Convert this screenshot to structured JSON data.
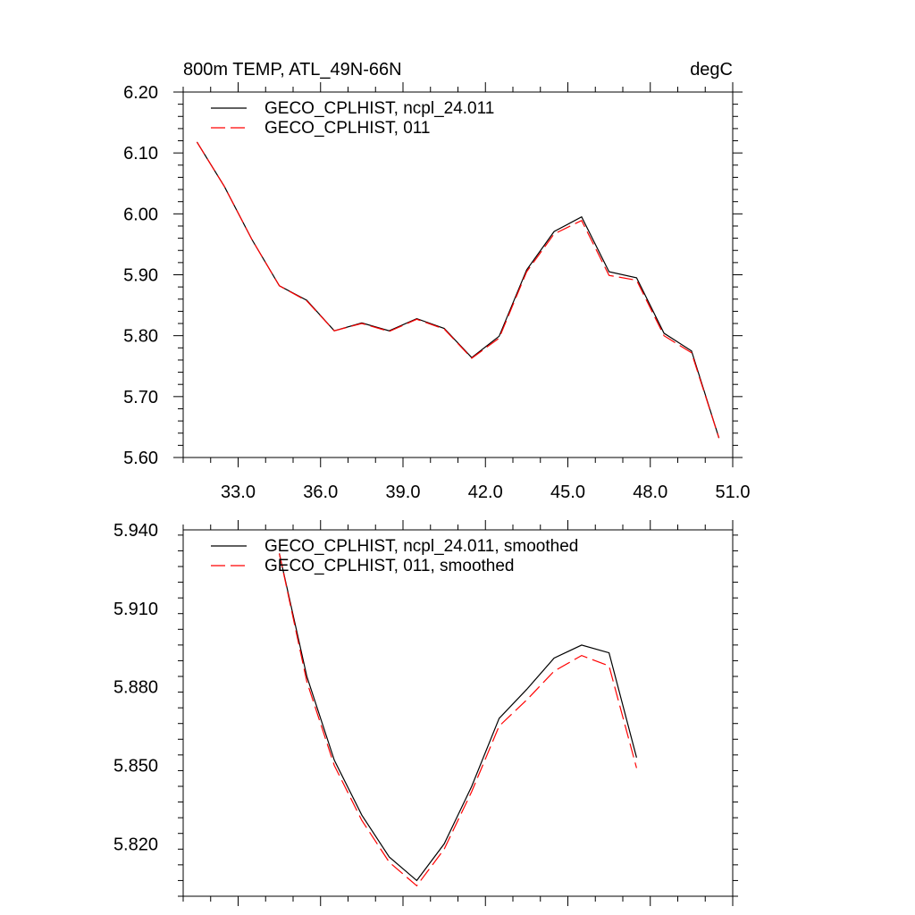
{
  "chart_data": [
    {
      "type": "line",
      "title_left": "800m TEMP, ATL_49N-66N",
      "title_right": "degC",
      "xlim": [
        31,
        51
      ],
      "ylim": [
        5.6,
        6.2
      ],
      "xticks": [
        33,
        36,
        39,
        42,
        45,
        48,
        51
      ],
      "xtick_labels": [
        "33.0",
        "36.0",
        "39.0",
        "42.0",
        "45.0",
        "48.0",
        "51.0"
      ],
      "yticks": [
        5.6,
        5.7,
        5.8,
        5.9,
        6.0,
        6.1,
        6.2
      ],
      "ytick_labels": [
        "5.60",
        "5.70",
        "5.80",
        "5.90",
        "6.00",
        "6.10",
        "6.20"
      ],
      "legend_position": "top-left",
      "x": [
        31.5,
        32.5,
        33.5,
        34.5,
        35.5,
        36.5,
        37.5,
        38.5,
        39.5,
        40.5,
        41.5,
        42.5,
        43.5,
        44.5,
        45.5,
        46.5,
        47.5,
        48.5,
        49.5,
        50.5
      ],
      "series": [
        {
          "name": "GECO_CPLHIST, ncpl_24.011",
          "color": "#000000",
          "dash": "solid",
          "values": [
            6.118,
            6.045,
            5.958,
            5.882,
            5.858,
            5.808,
            5.821,
            5.808,
            5.828,
            5.812,
            5.764,
            5.799,
            5.908,
            5.971,
            5.995,
            5.905,
            5.895,
            5.804,
            5.775,
            5.632
          ]
        },
        {
          "name": "GECO_CPLHIST, 011",
          "color": "#ff0000",
          "dash": "dashed",
          "values": [
            6.118,
            6.045,
            5.958,
            5.882,
            5.857,
            5.808,
            5.82,
            5.807,
            5.827,
            5.811,
            5.763,
            5.796,
            5.905,
            5.967,
            5.989,
            5.899,
            5.891,
            5.8,
            5.772,
            5.632
          ]
        }
      ]
    },
    {
      "type": "line",
      "xlim": [
        31,
        51
      ],
      "ylim": [
        5.8,
        5.94
      ],
      "xticks": [
        33,
        36,
        39,
        42,
        45,
        48,
        51
      ],
      "yticks": [
        5.82,
        5.85,
        5.88,
        5.91,
        5.94
      ],
      "ytick_labels": [
        "5.820",
        "5.850",
        "5.880",
        "5.910",
        "5.940"
      ],
      "legend_position": "top-left",
      "x": [
        34.5,
        35.5,
        36.5,
        37.5,
        38.5,
        39.5,
        40.5,
        41.5,
        42.5,
        43.5,
        44.5,
        45.5,
        46.5,
        47.5
      ],
      "series": [
        {
          "name": "GECO_CPLHIST, ncpl_24.011, smoothed",
          "color": "#000000",
          "dash": "solid",
          "values": [
            5.931,
            5.884,
            5.852,
            5.831,
            5.815,
            5.806,
            5.82,
            5.842,
            5.868,
            5.879,
            5.891,
            5.896,
            5.893,
            5.853
          ]
        },
        {
          "name": "GECO_CPLHIST, 011, smoothed",
          "color": "#ff0000",
          "dash": "dashed",
          "values": [
            5.931,
            5.882,
            5.85,
            5.829,
            5.813,
            5.804,
            5.818,
            5.84,
            5.865,
            5.875,
            5.886,
            5.892,
            5.888,
            5.849
          ]
        }
      ]
    }
  ]
}
